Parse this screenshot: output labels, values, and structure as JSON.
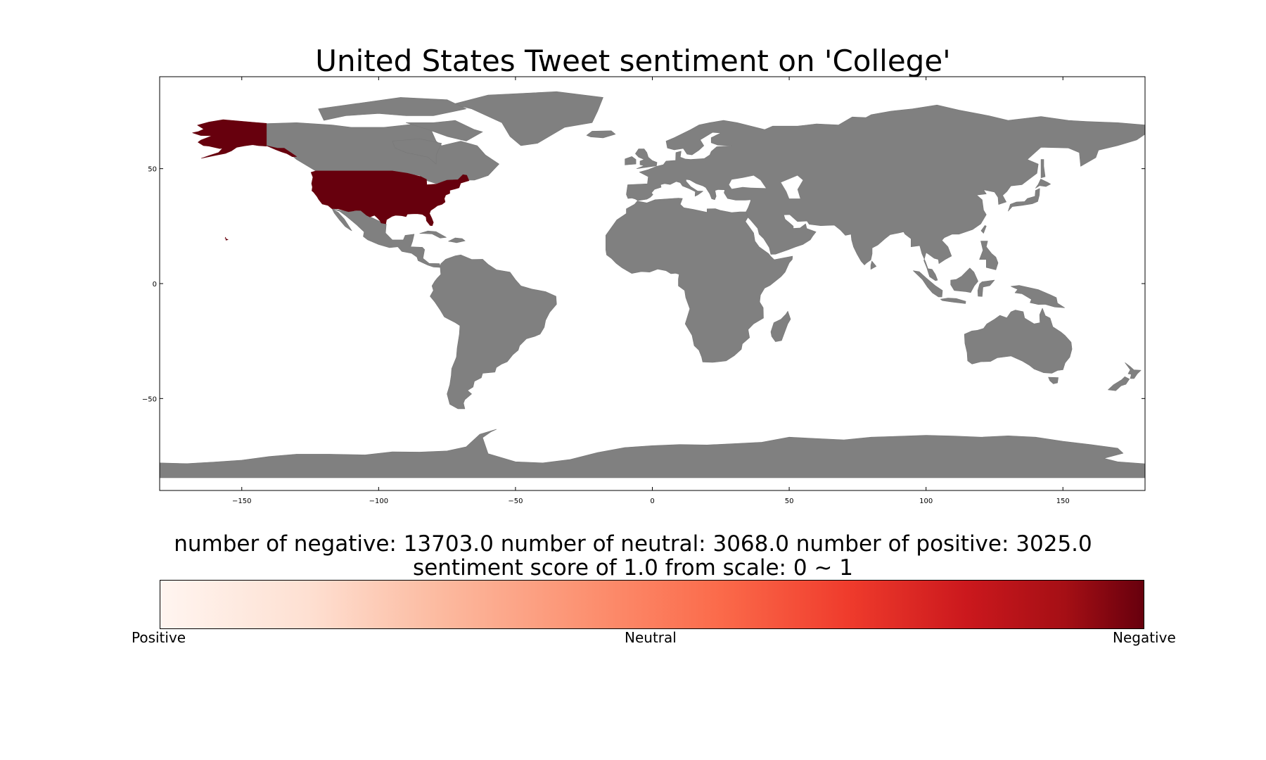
{
  "title": "United States Tweet sentiment on 'College'",
  "stats_line1": "number of negative: 13703.0 number of neutral: 3068.0 number of positive: 3025.0",
  "stats_line2": "sentiment score of 1.0 from scale: 0 ~ 1",
  "colorbar": {
    "left_label": "Positive",
    "center_label": "Neutral",
    "right_label": "Negative",
    "colormap": "Reds"
  },
  "chart_data": {
    "type": "choropleth-map",
    "title": "United States Tweet sentiment on 'College'",
    "projection": "equirectangular",
    "xlim": [
      -180,
      180
    ],
    "ylim": [
      -90,
      90
    ],
    "x_ticks": [
      -150,
      -100,
      -50,
      0,
      50,
      100,
      150
    ],
    "y_ticks": [
      50,
      0,
      -50
    ],
    "highlighted_region": "United States",
    "highlight_color": "#67000d",
    "land_color": "#808080",
    "counts": {
      "negative": 13703.0,
      "neutral": 3068.0,
      "positive": 3025.0
    },
    "sentiment_score": 1.0,
    "scale": [
      0,
      1
    ]
  }
}
